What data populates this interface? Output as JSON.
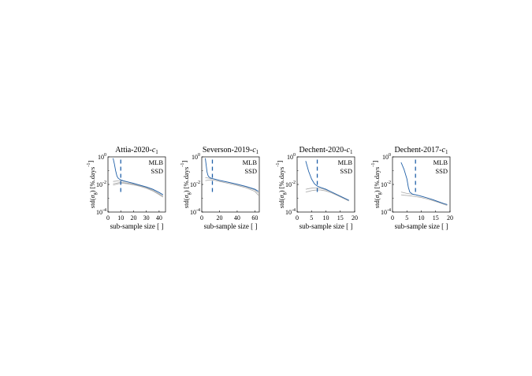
{
  "colors": {
    "mlb": "#2060a8",
    "ssd": "#a8a8a8",
    "axis": "#000000",
    "vline": "#2060a8"
  },
  "axis_common": {
    "ylabel": "std(σ_g) [%.days⁻¹]",
    "xlabel": "sub-sample size [ ]",
    "ytick_labels": [
      "10^0",
      "10^-2",
      "10^-4"
    ]
  },
  "chart_data": [
    {
      "type": "line",
      "title": "Attia-2020-c1",
      "xlabel": "sub-sample size [ ]",
      "ylabel": "std(σ_g) [%.days^-1]",
      "xlim": [
        0,
        45
      ],
      "ylim_log10": [
        -4,
        0
      ],
      "yscale": "log",
      "xticks": [
        0,
        10,
        20,
        30,
        40
      ],
      "vline_x": 10,
      "legend": [
        "MLB",
        "SSD"
      ],
      "legend_position": "top-right",
      "series": [
        {
          "name": "MLB",
          "style": "mlb",
          "x": [
            4,
            5,
            6,
            7,
            8,
            9,
            10,
            12,
            15,
            20,
            25,
            30,
            35,
            40,
            43
          ],
          "y": [
            -0.1,
            -0.5,
            -1.0,
            -1.4,
            -1.55,
            -1.62,
            -1.67,
            -1.73,
            -1.8,
            -1.92,
            -2.05,
            -2.18,
            -2.35,
            -2.58,
            -2.75
          ]
        },
        {
          "name": "SSD",
          "style": "ssd",
          "x": [
            4,
            6,
            8,
            10,
            12,
            15,
            20,
            25,
            30,
            35,
            40,
            43
          ],
          "y": [
            -1.78,
            -1.76,
            -1.74,
            -1.74,
            -1.76,
            -1.82,
            -1.93,
            -2.05,
            -2.18,
            -2.35,
            -2.58,
            -2.73
          ]
        },
        {
          "name": "",
          "style": "ssd",
          "x": [
            4,
            6,
            8,
            10,
            12,
            15,
            20,
            25,
            30,
            35,
            40,
            43
          ],
          "y": [
            -1.95,
            -1.92,
            -1.88,
            -1.85,
            -1.86,
            -1.9,
            -1.99,
            -2.1,
            -2.23,
            -2.42,
            -2.68,
            -2.85
          ]
        },
        {
          "name": "",
          "style": "ssd",
          "x": [
            4,
            6,
            8,
            10,
            12,
            15,
            20,
            25,
            30,
            35,
            40,
            43
          ],
          "y": [
            -2.05,
            -2.0,
            -1.95,
            -1.92,
            -1.92,
            -1.95,
            -2.03,
            -2.14,
            -2.28,
            -2.47,
            -2.74,
            -2.92
          ]
        }
      ]
    },
    {
      "type": "line",
      "title": "Severson-2019-c1",
      "xlabel": "sub-sample size [ ]",
      "ylabel": "std(σ_g) [%.days^-1]",
      "xlim": [
        0,
        65
      ],
      "ylim_log10": [
        -4,
        0
      ],
      "yscale": "log",
      "xticks": [
        0,
        20,
        40,
        60
      ],
      "vline_x": 12,
      "legend": [
        "MLB",
        "SSD"
      ],
      "legend_position": "top-right",
      "series": [
        {
          "name": "MLB",
          "style": "mlb",
          "x": [
            4,
            5,
            6,
            7,
            8,
            10,
            12,
            15,
            20,
            30,
            40,
            50,
            60,
            64
          ],
          "y": [
            -0.1,
            -0.6,
            -1.1,
            -1.35,
            -1.45,
            -1.53,
            -1.57,
            -1.62,
            -1.7,
            -1.84,
            -1.98,
            -2.15,
            -2.35,
            -2.5
          ]
        },
        {
          "name": "SSD",
          "style": "ssd",
          "x": [
            4,
            6,
            8,
            10,
            12,
            15,
            20,
            30,
            40,
            50,
            60,
            64
          ],
          "y": [
            -1.5,
            -1.52,
            -1.55,
            -1.57,
            -1.59,
            -1.63,
            -1.71,
            -1.85,
            -2.0,
            -2.17,
            -2.4,
            -2.62
          ]
        },
        {
          "name": "",
          "style": "ssd",
          "x": [
            4,
            6,
            8,
            10,
            12,
            15,
            20,
            30,
            40,
            50,
            60,
            64
          ],
          "y": [
            -1.72,
            -1.7,
            -1.68,
            -1.67,
            -1.68,
            -1.71,
            -1.78,
            -1.92,
            -2.07,
            -2.24,
            -2.5,
            -2.78
          ]
        }
      ]
    },
    {
      "type": "line",
      "title": "Dechent-2020-c1",
      "xlabel": "sub-sample size [ ]",
      "ylabel": "std(σ_g) [%.days^-1]",
      "xlim": [
        0,
        20
      ],
      "ylim_log10": [
        -4,
        0
      ],
      "yscale": "log",
      "xticks": [
        0,
        5,
        10,
        15,
        20
      ],
      "vline_x": 7,
      "legend": [
        "MLB",
        "SSD"
      ],
      "legend_position": "top-right",
      "series": [
        {
          "name": "MLB",
          "style": "mlb",
          "x": [
            3,
            4,
            5,
            6,
            7,
            8,
            10,
            12,
            14,
            16,
            18
          ],
          "y": [
            -0.3,
            -1.05,
            -1.6,
            -1.95,
            -2.12,
            -2.2,
            -2.35,
            -2.55,
            -2.75,
            -2.95,
            -3.15
          ]
        },
        {
          "name": "SSD",
          "style": "ssd",
          "x": [
            3,
            4,
            5,
            6,
            7,
            8,
            10,
            12,
            14,
            16,
            18
          ],
          "y": [
            -2.35,
            -2.3,
            -2.27,
            -2.25,
            -2.25,
            -2.27,
            -2.38,
            -2.55,
            -2.75,
            -2.95,
            -3.15
          ]
        },
        {
          "name": "",
          "style": "ssd",
          "x": [
            3,
            4,
            5,
            6,
            7,
            8,
            10,
            12,
            14,
            16,
            18
          ],
          "y": [
            -2.55,
            -2.5,
            -2.45,
            -2.42,
            -2.4,
            -2.4,
            -2.47,
            -2.62,
            -2.8,
            -3.0,
            -3.2
          ]
        }
      ]
    },
    {
      "type": "line",
      "title": "Dechent-2017-c1",
      "xlabel": "sub-sample size [ ]",
      "ylabel": "std(σ_g) [%.days^-1]",
      "xlim": [
        0,
        20
      ],
      "ylim_log10": [
        -4,
        0
      ],
      "yscale": "log",
      "xticks": [
        0,
        5,
        10,
        15,
        20
      ],
      "vline_x": 8,
      "legend": [
        "MLB",
        "SSD"
      ],
      "legend_position": "top-right",
      "series": [
        {
          "name": "MLB",
          "style": "mlb",
          "x": [
            3,
            4,
            5,
            5.5,
            6,
            7,
            8,
            10,
            12,
            14,
            16,
            18,
            19
          ],
          "y": [
            -0.4,
            -0.9,
            -1.6,
            -2.2,
            -2.55,
            -2.7,
            -2.75,
            -2.85,
            -2.97,
            -3.1,
            -3.25,
            -3.4,
            -3.45
          ]
        },
        {
          "name": "SSD",
          "style": "ssd",
          "x": [
            3,
            4,
            5,
            6,
            7,
            8,
            10,
            12,
            14,
            16,
            18,
            19
          ],
          "y": [
            -2.55,
            -2.6,
            -2.65,
            -2.68,
            -2.72,
            -2.75,
            -2.85,
            -2.97,
            -3.1,
            -3.25,
            -3.4,
            -3.45
          ]
        },
        {
          "name": "",
          "style": "ssd",
          "x": [
            3,
            4,
            5,
            6,
            7,
            8,
            10,
            12,
            14,
            16,
            18,
            19
          ],
          "y": [
            -2.75,
            -2.78,
            -2.8,
            -2.82,
            -2.85,
            -2.88,
            -2.95,
            -3.05,
            -3.17,
            -3.3,
            -3.45,
            -3.52
          ]
        }
      ]
    }
  ]
}
